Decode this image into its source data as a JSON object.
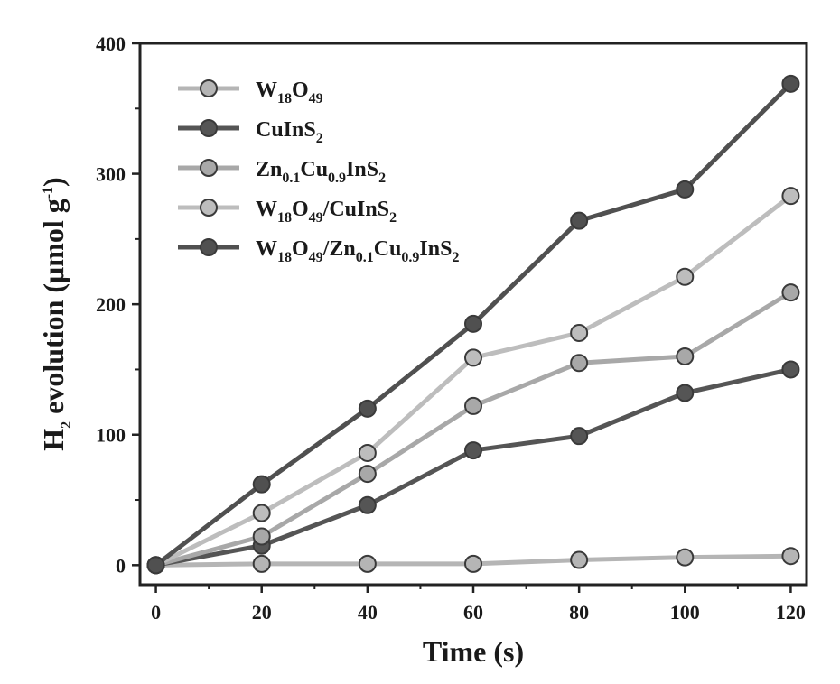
{
  "chart_data": {
    "type": "line",
    "title": "",
    "xlabel": "Time (s)",
    "ylabel": {
      "prefix": "H",
      "prefix_sub": "2",
      "main": " evolution (μmol g",
      "sup": "-1",
      "suffix": ")"
    },
    "xlim": [
      -3,
      123
    ],
    "ylim": [
      -15,
      400
    ],
    "x_ticks": [
      0,
      20,
      40,
      60,
      80,
      100,
      120
    ],
    "y_ticks": [
      0,
      100,
      200,
      300,
      400
    ],
    "x_tick_labels": [
      "0",
      "20",
      "40",
      "60",
      "80",
      "100",
      "120"
    ],
    "y_tick_labels": [
      "0",
      "100",
      "200",
      "300",
      "400"
    ],
    "grid": false,
    "legend_position": "top-left",
    "x": [
      0,
      20,
      40,
      60,
      80,
      100,
      120
    ],
    "series": [
      {
        "name": "W18O49",
        "legend": [
          {
            "t": "W",
            "s": ""
          },
          {
            "t": "18",
            "s": "sub"
          },
          {
            "t": "O",
            "s": ""
          },
          {
            "t": "49",
            "s": "sub"
          }
        ],
        "color": "#b5b5b5",
        "values": [
          0,
          1,
          1,
          1,
          4,
          6,
          7
        ]
      },
      {
        "name": "CuInS2",
        "legend": [
          {
            "t": "CuInS",
            "s": ""
          },
          {
            "t": "2",
            "s": "sub"
          }
        ],
        "color": "#555555",
        "values": [
          0,
          15,
          46,
          88,
          99,
          132,
          150
        ]
      },
      {
        "name": "Zn0.1Cu0.9InS2",
        "legend": [
          {
            "t": "Zn",
            "s": ""
          },
          {
            "t": "0.1",
            "s": "sub"
          },
          {
            "t": "Cu",
            "s": ""
          },
          {
            "t": "0.9",
            "s": "sub"
          },
          {
            "t": "InS",
            "s": ""
          },
          {
            "t": "2",
            "s": "sub"
          }
        ],
        "color": "#a8a8a8",
        "values": [
          0,
          22,
          70,
          122,
          155,
          160,
          209
        ]
      },
      {
        "name": "W18O49/CuInS2",
        "legend": [
          {
            "t": "W",
            "s": ""
          },
          {
            "t": "18",
            "s": "sub"
          },
          {
            "t": "O",
            "s": ""
          },
          {
            "t": "49",
            "s": "sub"
          },
          {
            "t": "/CuInS",
            "s": ""
          },
          {
            "t": "2",
            "s": "sub"
          }
        ],
        "color": "#bdbdbd",
        "values": [
          0,
          40,
          86,
          159,
          178,
          221,
          283
        ]
      },
      {
        "name": "W18O49/Zn0.1Cu0.9InS2",
        "legend": [
          {
            "t": "W",
            "s": ""
          },
          {
            "t": "18",
            "s": "sub"
          },
          {
            "t": "O",
            "s": ""
          },
          {
            "t": "49",
            "s": "sub"
          },
          {
            "t": "/Zn",
            "s": ""
          },
          {
            "t": "0.1",
            "s": "sub"
          },
          {
            "t": "Cu",
            "s": ""
          },
          {
            "t": "0.9",
            "s": "sub"
          },
          {
            "t": "InS",
            "s": ""
          },
          {
            "t": "2",
            "s": "sub"
          }
        ],
        "color": "#505050",
        "values": [
          0,
          62,
          120,
          185,
          264,
          288,
          369
        ]
      }
    ]
  }
}
